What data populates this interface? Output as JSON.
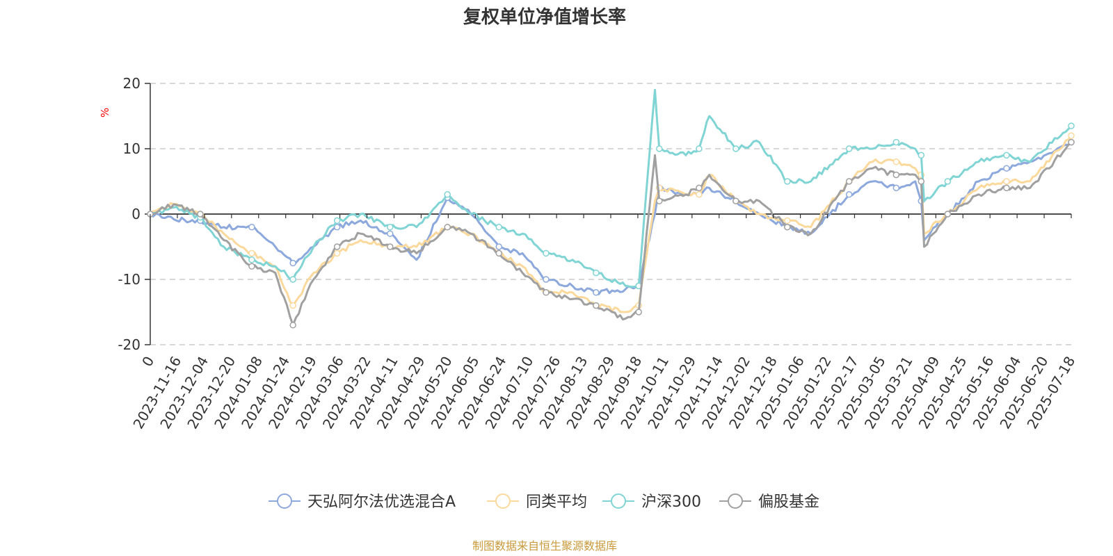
{
  "chart_data": {
    "type": "line",
    "title": "复权单位净值增长率",
    "ylabel": "%",
    "ylim": [
      -20,
      20
    ],
    "yticks": [
      20,
      10,
      0,
      -10,
      -20
    ],
    "grid": true,
    "legend_position": "bottom",
    "x_tick_labels": [
      "0",
      "2023-11-16",
      "2023-12-04",
      "2023-12-20",
      "2024-01-08",
      "2024-01-24",
      "2024-02-19",
      "2024-03-06",
      "2024-03-22",
      "2024-04-11",
      "2024-04-29",
      "2024-05-20",
      "2024-06-05",
      "2024-06-24",
      "2024-07-10",
      "2024-07-26",
      "2024-08-13",
      "2024-08-29",
      "2024-09-18",
      "2024-10-11",
      "2024-10-29",
      "2024-11-14",
      "2024-12-02",
      "2024-12-18",
      "2025-01-06",
      "2025-01-22",
      "2025-02-17",
      "2025-03-05",
      "2025-03-21",
      "2025-04-09",
      "2025-04-25",
      "2025-05-16",
      "2025-06-04",
      "2025-06-20",
      "2025-07-18"
    ],
    "x": [
      "2023-10-31",
      "2023-11-16",
      "2023-12-04",
      "2023-12-20",
      "2024-01-08",
      "2024-01-24",
      "2024-02-05",
      "2024-02-19",
      "2024-03-06",
      "2024-03-22",
      "2024-04-11",
      "2024-04-29",
      "2024-05-20",
      "2024-06-05",
      "2024-06-24",
      "2024-07-10",
      "2024-07-26",
      "2024-08-13",
      "2024-08-29",
      "2024-09-18",
      "2024-09-27",
      "2024-10-08",
      "2024-10-11",
      "2024-10-29",
      "2024-11-07",
      "2024-11-14",
      "2024-12-02",
      "2024-12-18",
      "2025-01-06",
      "2025-01-22",
      "2025-02-17",
      "2025-03-05",
      "2025-03-21",
      "2025-04-03",
      "2025-04-07",
      "2025-04-09",
      "2025-04-25",
      "2025-05-16",
      "2025-06-04",
      "2025-06-20",
      "2025-07-18"
    ],
    "series": [
      {
        "name": "天弘阿尔法优选混合A",
        "color": "#8ca8dc",
        "values": [
          0,
          -0.8,
          -1.0,
          -2,
          -2,
          -5,
          -7.5,
          -5,
          -2,
          -1,
          -3,
          -7,
          2.5,
          0,
          -5,
          -6,
          -10,
          -11,
          -12,
          -11.5,
          -11,
          0,
          4,
          3,
          3,
          4,
          2,
          0,
          -2,
          -3,
          3,
          5,
          4,
          5,
          2,
          -4,
          0,
          5,
          7,
          8,
          11
        ]
      },
      {
        "name": "同类平均",
        "color": "#fbd99c",
        "values": [
          0,
          1.5,
          0,
          -3,
          -6,
          -8,
          -14,
          -9,
          -6,
          -4,
          -5,
          -5,
          -2,
          -3,
          -6,
          -8,
          -12,
          -12,
          -14,
          -15,
          -14,
          2,
          4,
          3,
          3,
          6,
          2,
          0,
          -1,
          -2,
          5,
          8,
          8,
          7,
          6,
          -3,
          0,
          4,
          5,
          5,
          12
        ]
      },
      {
        "name": "沪深300",
        "color": "#80d4d4",
        "values": [
          0,
          1,
          -0.5,
          -5,
          -7,
          -8,
          -10,
          -5,
          -1,
          0,
          -2,
          -2,
          3,
          0,
          -2,
          -3,
          -6,
          -7,
          -9,
          -11,
          -11,
          19,
          10,
          9,
          10,
          15,
          10,
          11,
          5,
          5,
          10,
          10,
          11,
          10,
          9,
          2,
          5,
          8,
          9,
          8,
          13.5
        ]
      },
      {
        "name": "偏股基金",
        "color": "#a0a0a0",
        "values": [
          0,
          1.5,
          0,
          -4,
          -8,
          -9,
          -17,
          -10,
          -5,
          -3,
          -5,
          -6,
          -2,
          -3,
          -6,
          -9,
          -12,
          -13,
          -14,
          -16,
          -15,
          9,
          2,
          3,
          4,
          6,
          2,
          2,
          -2,
          -3,
          5,
          7,
          6,
          6,
          5,
          -5,
          0,
          3,
          4,
          4,
          11
        ]
      }
    ]
  },
  "source_note": "制图数据来自恒生聚源数据库",
  "colors": {
    "title": "#333333",
    "axis": "#333333",
    "grid": "#cccccc",
    "ylabel": "#ff0000",
    "source": "#c89a3c"
  }
}
